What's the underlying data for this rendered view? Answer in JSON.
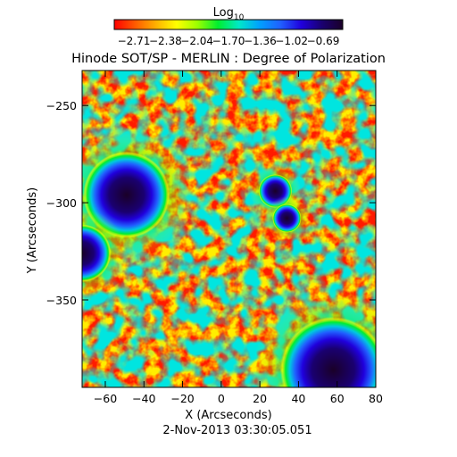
{
  "figure": {
    "title": "Hinode SOT/SP - MERLIN : Degree of Polarization",
    "timestamp": "2-Nov-2013 03:30:05.051"
  },
  "colorbar": {
    "label_base": "Log",
    "label_sub": "10",
    "tick_labels": [
      "-2.71",
      "-2.38",
      "-2.04",
      "-1.70",
      "-1.36",
      "-1.02",
      "-0.69"
    ],
    "colors": [
      "#ff0000",
      "#ff5a00",
      "#ffb000",
      "#ffff00",
      "#9cff00",
      "#00ee30",
      "#00e8c8",
      "#00a0ff",
      "#2060ff",
      "#2000dd",
      "#1a0070",
      "#1a0028"
    ]
  },
  "axes": {
    "xlabel": "X (Arcseconds)",
    "ylabel": "Y (Arcseconds)",
    "xlim": [
      -72,
      80
    ],
    "ylim": [
      -395,
      -232
    ],
    "xticks": [
      -60,
      -40,
      -20,
      0,
      20,
      40,
      60,
      80
    ],
    "yticks": [
      -250,
      -300,
      -350
    ]
  },
  "image": {
    "high_polarization_regions": [
      {
        "name": "upper-left-spot",
        "x": -49,
        "y": -296,
        "r": 18
      },
      {
        "name": "left-edge-spot",
        "x": -72,
        "y": -326,
        "r": 12
      },
      {
        "name": "upper-center-plage-1",
        "x": 28,
        "y": -294,
        "r": 7
      },
      {
        "name": "upper-center-plage-2",
        "x": 34,
        "y": -308,
        "r": 6
      },
      {
        "name": "lower-right-spot",
        "x": 58,
        "y": -386,
        "r": 22
      }
    ]
  }
}
